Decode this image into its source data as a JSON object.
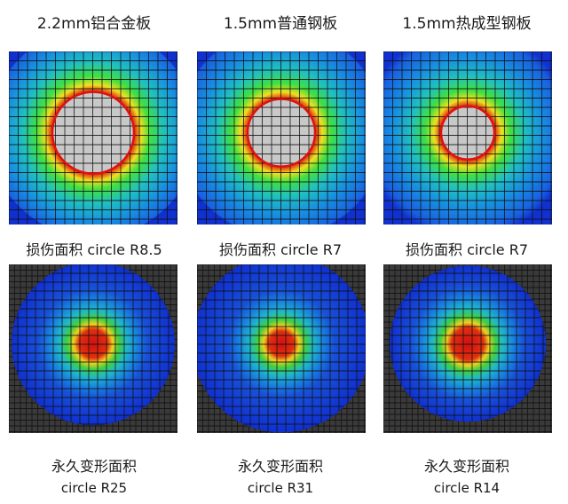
{
  "columns": [
    {
      "material": "2.2mm铝合金板",
      "damage_area_label": "损伤面积 circle R8.5",
      "permanent_label": "永久变形面积",
      "permanent_size": "circle R25"
    },
    {
      "material": "1.5mm普通钢板",
      "damage_area_label": "损伤面积 circle R7",
      "permanent_label": "永久变形面积",
      "permanent_size": "circle R31"
    },
    {
      "material": "1.5mm热成型钢板",
      "damage_area_label": "损伤面积 circle R7",
      "permanent_label": "永久变形面积",
      "permanent_size": "circle R14"
    }
  ],
  "colors": {
    "background_blue": "#1030d0",
    "damaged_zone": "#c8c8c8",
    "damage_edge": "#e01010",
    "mesh_lines": "#101010",
    "undeformed_gray": "#3a3a3a"
  }
}
